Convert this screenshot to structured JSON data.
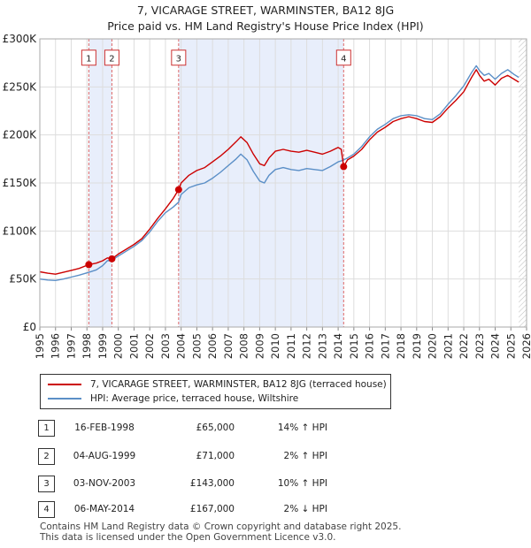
{
  "chart_data": {
    "type": "line",
    "title": "7, VICARAGE STREET, WARMINSTER, BA12 8JG",
    "subtitle": "Price paid vs. HM Land Registry's House Price Index (HPI)",
    "x_ticks": [
      "1995",
      "1996",
      "1997",
      "1998",
      "1999",
      "2000",
      "2001",
      "2002",
      "2003",
      "2004",
      "2005",
      "2006",
      "2007",
      "2008",
      "2009",
      "2010",
      "2011",
      "2012",
      "2013",
      "2014",
      "2015",
      "2016",
      "2017",
      "2018",
      "2019",
      "2020",
      "2021",
      "2022",
      "2023",
      "2024",
      "2025",
      "2026"
    ],
    "y_ticks": [
      "£0",
      "£50K",
      "£100K",
      "£150K",
      "£200K",
      "£250K",
      "£300K"
    ],
    "xlim": [
      1995,
      2026
    ],
    "ylim": [
      0,
      300000
    ],
    "grid": true,
    "series": [
      {
        "name": "7, VICARAGE STREET, WARMINSTER, BA12 8JG (terraced house)",
        "color": "#cc0000",
        "x": [
          1995.0,
          1995.5,
          1996.0,
          1996.5,
          1997.0,
          1997.5,
          1998.12,
          1998.6,
          1999.0,
          1999.3,
          1999.59,
          2000.0,
          2000.5,
          2001.0,
          2001.5,
          2002.0,
          2002.5,
          2003.0,
          2003.5,
          2003.84,
          2004.0,
          2004.5,
          2005.0,
          2005.5,
          2006.0,
          2006.5,
          2007.0,
          2007.5,
          2007.8,
          2008.2,
          2008.6,
          2009.0,
          2009.3,
          2009.6,
          2010.0,
          2010.5,
          2011.0,
          2011.5,
          2012.0,
          2012.5,
          2013.0,
          2013.5,
          2014.0,
          2014.2,
          2014.35,
          2014.6,
          2015.0,
          2015.5,
          2016.0,
          2016.5,
          2017.0,
          2017.5,
          2018.0,
          2018.5,
          2019.0,
          2019.5,
          2020.0,
          2020.5,
          2021.0,
          2021.5,
          2022.0,
          2022.5,
          2022.8,
          2023.0,
          2023.3,
          2023.6,
          2024.0,
          2024.4,
          2024.8,
          2025.2,
          2025.5
        ],
        "values": [
          57500,
          56000,
          55000,
          57000,
          59000,
          61000,
          65000,
          66500,
          69000,
          72000,
          71000,
          76000,
          81000,
          86000,
          92000,
          102000,
          113000,
          123000,
          134000,
          143000,
          150000,
          158000,
          163000,
          166000,
          172000,
          178000,
          185000,
          193000,
          198000,
          192000,
          180000,
          170000,
          168000,
          176000,
          183000,
          185000,
          183000,
          182000,
          184000,
          182000,
          180000,
          183000,
          187000,
          185000,
          167000,
          174000,
          178000,
          185000,
          195000,
          203000,
          208000,
          214000,
          217000,
          219000,
          217000,
          214000,
          213000,
          219000,
          228000,
          236000,
          245000,
          260000,
          268000,
          262000,
          256000,
          258000,
          252000,
          259000,
          262000,
          258000,
          255000
        ]
      },
      {
        "name": "HPI: Average price, terraced house, Wiltshire",
        "color": "#5b8fc7",
        "x": [
          1995.0,
          1995.5,
          1996.0,
          1996.5,
          1997.0,
          1997.5,
          1998.12,
          1998.6,
          1999.0,
          1999.3,
          1999.59,
          2000.0,
          2000.5,
          2001.0,
          2001.5,
          2002.0,
          2002.5,
          2003.0,
          2003.5,
          2003.84,
          2004.0,
          2004.5,
          2005.0,
          2005.5,
          2006.0,
          2006.5,
          2007.0,
          2007.5,
          2007.8,
          2008.2,
          2008.6,
          2009.0,
          2009.3,
          2009.6,
          2010.0,
          2010.5,
          2011.0,
          2011.5,
          2012.0,
          2012.5,
          2013.0,
          2013.5,
          2014.0,
          2014.2,
          2014.35,
          2014.6,
          2015.0,
          2015.5,
          2016.0,
          2016.5,
          2017.0,
          2017.5,
          2018.0,
          2018.5,
          2019.0,
          2019.5,
          2020.0,
          2020.5,
          2021.0,
          2021.5,
          2022.0,
          2022.5,
          2022.8,
          2023.0,
          2023.3,
          2023.6,
          2024.0,
          2024.4,
          2024.8,
          2025.2,
          2025.5
        ],
        "values": [
          50000,
          49000,
          48500,
          50000,
          52000,
          54000,
          57000,
          59500,
          64000,
          69000,
          69500,
          74000,
          79000,
          84000,
          90000,
          99000,
          110000,
          119000,
          125000,
          130000,
          138000,
          145000,
          148000,
          150000,
          155000,
          161000,
          168000,
          175000,
          180000,
          174000,
          162000,
          152000,
          150000,
          158000,
          164000,
          166000,
          164000,
          163000,
          165000,
          164000,
          163000,
          167000,
          172000,
          173000,
          174000,
          176000,
          180000,
          188000,
          198000,
          206000,
          211000,
          217000,
          220000,
          221000,
          220000,
          217000,
          216000,
          222000,
          232000,
          241000,
          251000,
          265000,
          272000,
          267000,
          262000,
          264000,
          258000,
          264000,
          268000,
          263000,
          260000
        ]
      }
    ],
    "sales": [
      {
        "label": "1",
        "x": 1998.12,
        "value": 65000
      },
      {
        "label": "2",
        "x": 1999.59,
        "value": 71000
      },
      {
        "label": "3",
        "x": 2003.84,
        "value": 143000
      },
      {
        "label": "4",
        "x": 2014.35,
        "value": 167000
      }
    ],
    "shaded_ranges": [
      [
        1998.12,
        1999.59
      ],
      [
        2003.84,
        2014.35
      ]
    ],
    "forecast_from": 2025.5,
    "marker_box_value": 280000
  },
  "legend": {
    "line1": "7, VICARAGE STREET, WARMINSTER, BA12 8JG (terraced house)",
    "line2": "HPI: Average price, terraced house, Wiltshire"
  },
  "transactions": [
    {
      "num": "1",
      "date": "16-FEB-1998",
      "price": "£65,000",
      "hpi": "14% ↑ HPI"
    },
    {
      "num": "2",
      "date": "04-AUG-1999",
      "price": "£71,000",
      "hpi": "2% ↑ HPI"
    },
    {
      "num": "3",
      "date": "03-NOV-2003",
      "price": "£143,000",
      "hpi": "10% ↑ HPI"
    },
    {
      "num": "4",
      "date": "06-MAY-2014",
      "price": "£167,000",
      "hpi": "2% ↓ HPI"
    }
  ],
  "footer": {
    "line1": "Contains HM Land Registry data © Crown copyright and database right 2025.",
    "line2": "This data is licensed under the Open Government Licence v3.0."
  }
}
